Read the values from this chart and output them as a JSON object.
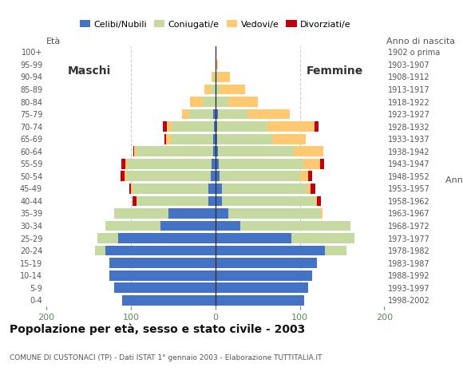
{
  "age_groups": [
    "100+",
    "95-99",
    "90-94",
    "85-89",
    "80-84",
    "75-79",
    "70-74",
    "65-69",
    "60-64",
    "55-59",
    "50-54",
    "45-49",
    "40-44",
    "35-39",
    "30-34",
    "25-29",
    "20-24",
    "15-19",
    "10-14",
    "5-9",
    "0-4"
  ],
  "birth_years": [
    "1902 o prima",
    "1903-1907",
    "1908-1912",
    "1913-1917",
    "1918-1922",
    "1923-1927",
    "1928-1932",
    "1933-1937",
    "1938-1942",
    "1943-1947",
    "1948-1952",
    "1953-1957",
    "1958-1962",
    "1963-1967",
    "1968-1972",
    "1973-1977",
    "1978-1982",
    "1983-1987",
    "1988-1992",
    "1993-1997",
    "1998-2002"
  ],
  "males": {
    "celibi": [
      0,
      0,
      0,
      0,
      0,
      3,
      2,
      3,
      3,
      4,
      5,
      8,
      8,
      55,
      65,
      115,
      130,
      125,
      125,
      120,
      110
    ],
    "coniugati": [
      0,
      0,
      2,
      5,
      15,
      28,
      50,
      50,
      90,
      100,
      100,
      90,
      85,
      65,
      65,
      25,
      12,
      0,
      0,
      0,
      0
    ],
    "vedovi": [
      0,
      0,
      2,
      8,
      15,
      8,
      5,
      5,
      3,
      2,
      2,
      2,
      0,
      0,
      0,
      0,
      0,
      0,
      0,
      0,
      0
    ],
    "divorziati": [
      0,
      0,
      0,
      0,
      0,
      0,
      5,
      2,
      1,
      5,
      5,
      2,
      5,
      0,
      0,
      0,
      0,
      0,
      0,
      0,
      0
    ]
  },
  "females": {
    "nubili": [
      0,
      0,
      0,
      0,
      0,
      3,
      2,
      2,
      3,
      4,
      5,
      8,
      8,
      15,
      30,
      90,
      130,
      120,
      115,
      110,
      105
    ],
    "coniugate": [
      0,
      0,
      2,
      5,
      15,
      35,
      60,
      65,
      90,
      100,
      95,
      100,
      110,
      110,
      130,
      75,
      25,
      0,
      0,
      0,
      0
    ],
    "vedove": [
      0,
      3,
      15,
      30,
      35,
      50,
      55,
      40,
      35,
      20,
      10,
      5,
      2,
      2,
      0,
      0,
      0,
      0,
      0,
      0,
      0
    ],
    "divorziate": [
      0,
      0,
      0,
      0,
      0,
      0,
      5,
      0,
      0,
      5,
      5,
      5,
      5,
      0,
      0,
      0,
      0,
      0,
      0,
      0,
      0
    ]
  },
  "color_celibi": "#4472c4",
  "color_coniugati": "#c5d9a0",
  "color_vedovi": "#ffc972",
  "color_divorziati": "#c0000f",
  "title": "Popolazione per età, sesso e stato civile - 2003",
  "subtitle": "COMUNE DI CUSTONACI (TP) - Dati ISTAT 1° gennaio 2003 - Elaborazione TUTTITALIA.IT",
  "xlabel_left": "Maschi",
  "xlabel_right": "Femmine",
  "ylabel_left": "Età",
  "ylabel_right": "Anno di nascita",
  "xlim": 200,
  "bg_color": "#ffffff",
  "grid_color": "#cccccc"
}
